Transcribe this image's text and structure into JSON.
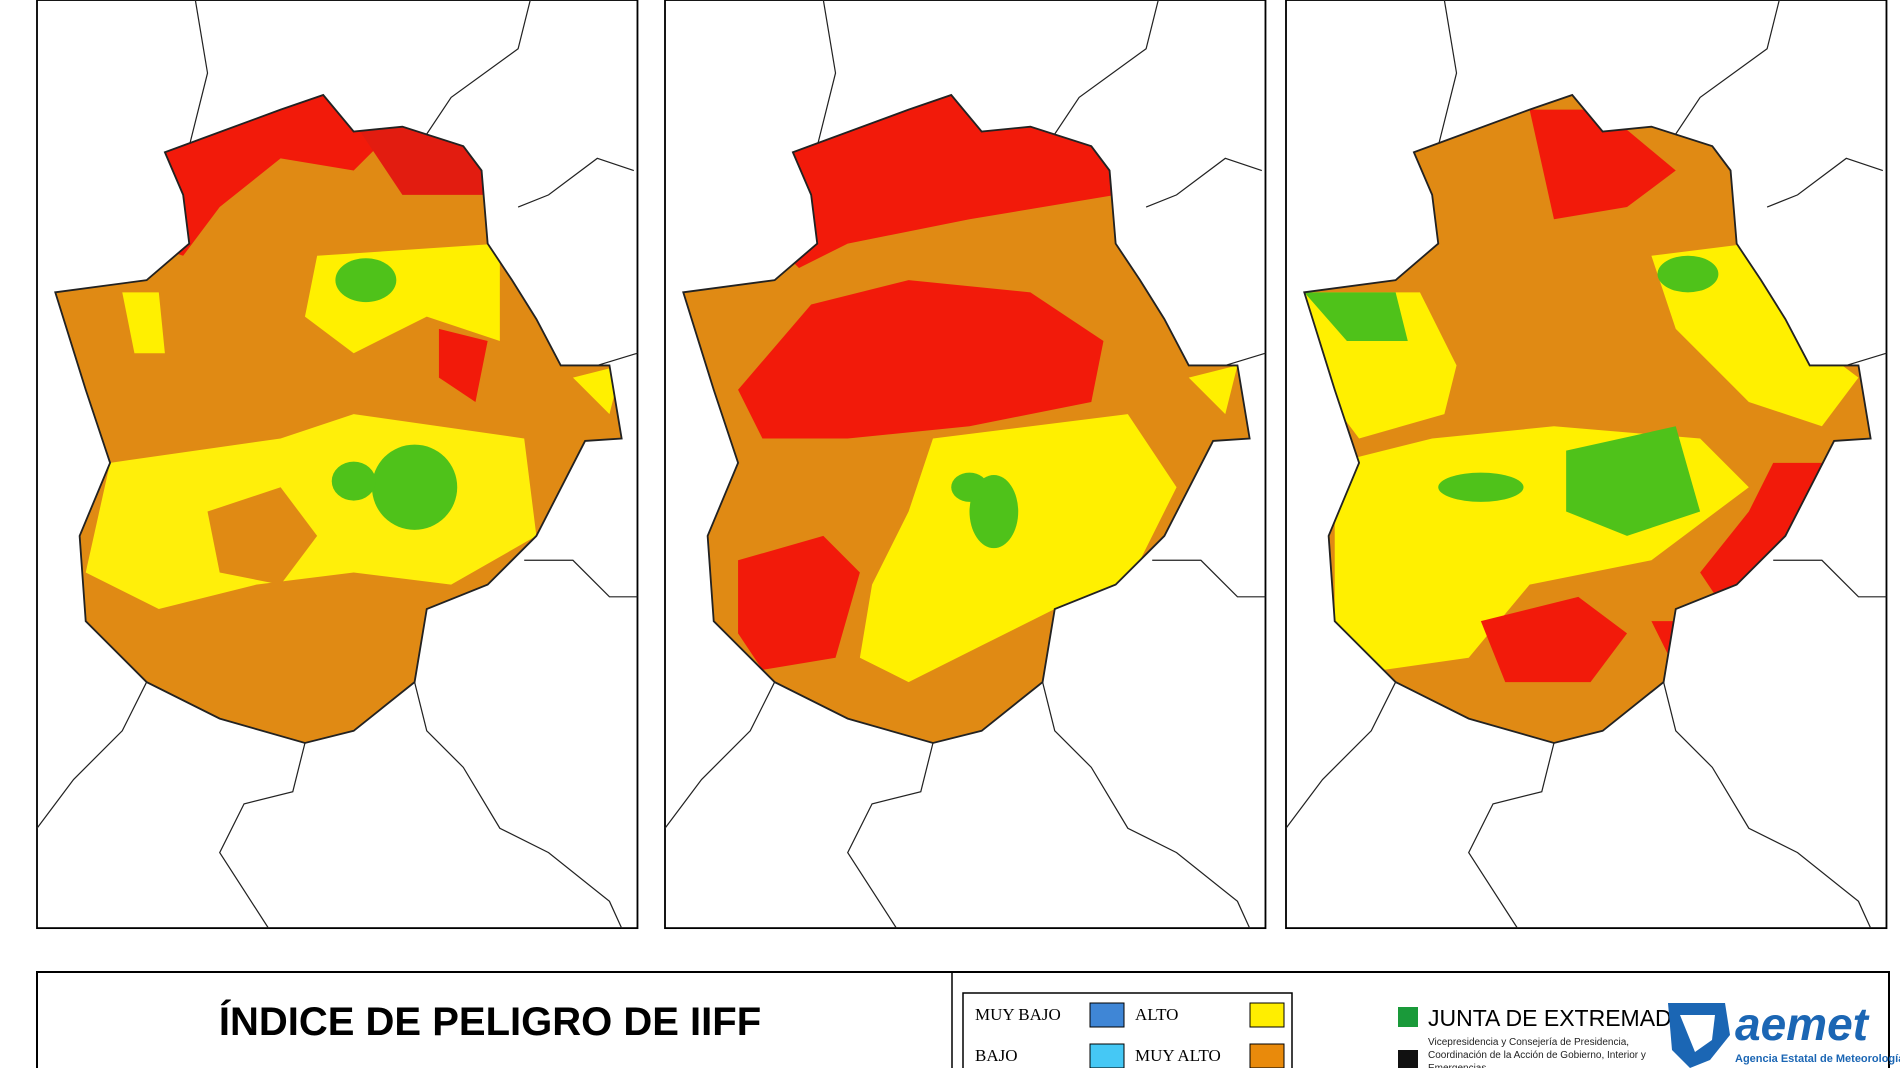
{
  "title": "ÍNDICE DE PELIGRO DE IIFF",
  "legend": [
    {
      "label": "MUY BAJO",
      "color": "#3f86d6"
    },
    {
      "label": "BAJO",
      "color": "#45c8f5"
    },
    {
      "label": "ALTO",
      "color": "#ffee00"
    },
    {
      "label": "MUY ALTO",
      "color": "#e98a0b"
    }
  ],
  "logos": {
    "junta": "JUNTA DE EXTREMADURA",
    "junta_sub": "Vicepresidencia y Consejería de Presidencia, Coordinación de la Acción de Gobierno, Interior y Emergencias",
    "aemet": "aemet",
    "aemet_sub": "Agencia Estatal de Meteorología"
  }
}
